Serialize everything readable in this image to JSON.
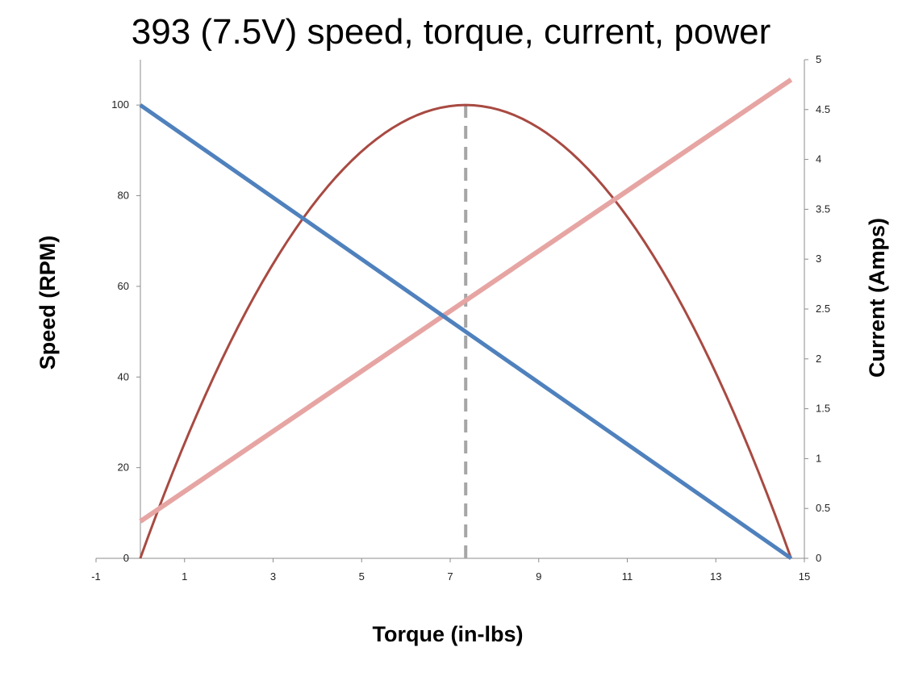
{
  "chart_data": {
    "type": "line",
    "title": "393 (7.5V) speed, torque, current, power",
    "xlabel": "Torque (in-lbs)",
    "ylabel": "Speed (RPM)",
    "y2label": "Current (Amps)",
    "xlim": [
      -1,
      15
    ],
    "ylim": [
      0,
      110
    ],
    "y2lim": [
      0,
      5
    ],
    "x_ticks": [
      "-1",
      "1",
      "3",
      "5",
      "7",
      "9",
      "11",
      "13",
      "15"
    ],
    "y_ticks": [
      "0",
      "20",
      "40",
      "60",
      "80",
      "100"
    ],
    "y2_ticks": [
      "0",
      "0.5",
      "1",
      "1.5",
      "2",
      "2.5",
      "3",
      "3.5",
      "4",
      "4.5",
      "5"
    ],
    "grid": false,
    "legend": "none",
    "series": [
      {
        "color": "#4f81bd",
        "axis": "left",
        "x": [
          0,
          14.7
        ],
        "y": [
          100,
          0
        ]
      },
      {
        "color": "#e6a5a3",
        "axis": "right",
        "x": [
          0,
          14.7
        ],
        "y": [
          0.37,
          4.8
        ]
      },
      {
        "color": "#a84a42",
        "axis": "left",
        "kind": "parabola",
        "x": [
          0,
          1,
          2,
          3,
          4,
          5,
          6,
          7,
          7.35,
          8,
          9,
          10,
          11,
          12,
          13,
          14,
          14.7
        ],
        "y": [
          0,
          25.1,
          46.0,
          62.9,
          80.1,
          87.5,
          95.6,
          99.8,
          100,
          99.2,
          94.6,
          85.6,
          72.3,
          54.6,
          32.5,
          6.1,
          0
        ]
      },
      {
        "color": "#a6a6a6",
        "axis": "left",
        "style": "dashed",
        "x": [
          7.35,
          7.35
        ],
        "y": [
          0,
          100
        ]
      }
    ]
  }
}
